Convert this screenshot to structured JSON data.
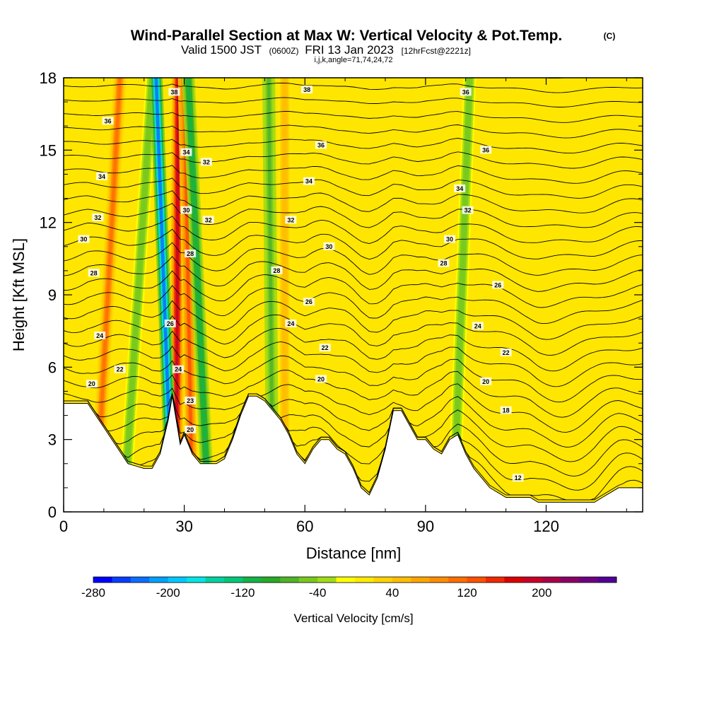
{
  "header": {
    "title": "Wind-Parallel Section at Max W: Vertical Velocity & Pot.Temp.",
    "copyright": "(C)",
    "valid_main": "Valid 1500 JST",
    "valid_utc": "(0600Z)",
    "valid_date": "FRI 13 Jan 2023",
    "forecast": "[12hrFcst@2221z]",
    "indices": "i,j,k,angle=71,74,24,72"
  },
  "chart_data": {
    "type": "heatmap",
    "title": "Wind-Parallel Section at Max W: Vertical Velocity & Pot.Temp.",
    "xlabel": "Distance [nm]",
    "ylabel": "Height [Kft MSL]",
    "xlim": [
      0,
      144
    ],
    "ylim": [
      0,
      18
    ],
    "xticks": [
      0,
      30,
      60,
      90,
      120
    ],
    "xtick_labels": [
      "0",
      "30",
      "60",
      "90",
      "120"
    ],
    "yticks": [
      0,
      3,
      6,
      9,
      12,
      15,
      18
    ],
    "ytick_labels": [
      "0",
      "3",
      "6",
      "9",
      "12",
      "15",
      "18"
    ],
    "colorbar": {
      "label": "Vertical Velocity [cm/s]",
      "min": -280,
      "max": 280,
      "tick_values": [
        -280,
        -200,
        -120,
        -40,
        40,
        120,
        200
      ],
      "tick_labels": [
        "-280",
        "-200",
        "-120",
        "-40",
        "40",
        "120",
        "200"
      ],
      "colors": [
        "#0000ff",
        "#0a3cff",
        "#0a6eff",
        "#00a0ff",
        "#00c8ff",
        "#00e6e6",
        "#00d2a0",
        "#00c878",
        "#14b446",
        "#28aa28",
        "#50b428",
        "#78c81e",
        "#a0dc14",
        "#ffff00",
        "#ffeb00",
        "#ffd200",
        "#ffbe00",
        "#ffa500",
        "#ff8c00",
        "#ff6e00",
        "#ff5000",
        "#f02800",
        "#dc0000",
        "#c80028",
        "#aa0046",
        "#8c0064",
        "#6e0082",
        "#500096"
      ]
    },
    "terrain_kft": {
      "x": [
        0,
        6,
        8,
        10,
        12,
        14,
        16,
        18,
        20,
        22,
        24,
        26,
        27,
        28,
        29,
        30,
        32,
        34,
        36,
        38,
        40,
        42,
        44,
        46,
        48,
        50,
        52,
        54,
        56,
        58,
        60,
        62,
        64,
        66,
        68,
        70,
        72,
        74,
        76,
        78,
        80,
        82,
        84,
        86,
        88,
        90,
        92,
        94,
        96,
        98,
        100,
        102,
        104,
        106,
        108,
        110,
        112,
        114,
        116,
        118,
        120,
        122,
        124,
        126,
        128,
        130,
        132,
        134,
        136,
        138,
        140,
        142,
        144
      ],
      "height": [
        4.5,
        4.5,
        4.0,
        3.5,
        3.0,
        2.5,
        2.0,
        1.9,
        1.8,
        1.8,
        2.4,
        3.8,
        4.8,
        3.8,
        2.8,
        3.2,
        2.4,
        2.0,
        2.0,
        2.0,
        2.2,
        3.0,
        4.0,
        4.8,
        4.8,
        4.6,
        4.2,
        3.8,
        3.2,
        2.4,
        2.0,
        2.6,
        3.0,
        3.0,
        2.6,
        2.4,
        1.8,
        1.0,
        0.7,
        1.4,
        2.6,
        4.2,
        4.2,
        3.6,
        3.0,
        3.0,
        2.6,
        2.4,
        3.0,
        3.2,
        2.4,
        1.8,
        1.4,
        1.0,
        0.8,
        0.6,
        0.6,
        0.6,
        0.6,
        0.4,
        0.4,
        0.4,
        0.4,
        0.4,
        0.4,
        0.4,
        0.4,
        0.6,
        0.8,
        1.0,
        1.0,
        1.0,
        1.0
      ]
    },
    "velocity_bands": [
      {
        "x_bottom": 8,
        "x_top": 14,
        "w": 120
      },
      {
        "x_bottom": 15,
        "x_top": 22,
        "w": -60
      },
      {
        "x_bottom": 28,
        "x_top": 28.5,
        "w": 220
      },
      {
        "x_bottom": 27,
        "x_top": 23,
        "w": -260
      },
      {
        "x_bottom": 32,
        "x_top": 30,
        "w": 140
      },
      {
        "x_bottom": 36,
        "x_top": 31,
        "w": -120
      },
      {
        "x_bottom": 52,
        "x_top": 51,
        "w": -80
      },
      {
        "x_bottom": 55,
        "x_top": 55,
        "w": 60
      },
      {
        "x_bottom": 97,
        "x_top": 101,
        "w": -60
      }
    ],
    "potential_temperature_labels": [
      {
        "x": 7,
        "y": 5.3,
        "label": "20"
      },
      {
        "x": 9,
        "y": 7.3,
        "label": "24"
      },
      {
        "x": 14,
        "y": 5.9,
        "label": "22"
      },
      {
        "x": 7.5,
        "y": 9.9,
        "label": "28"
      },
      {
        "x": 5,
        "y": 11.3,
        "label": "30"
      },
      {
        "x": 8.5,
        "y": 12.2,
        "label": "32"
      },
      {
        "x": 9.5,
        "y": 13.9,
        "label": "34"
      },
      {
        "x": 11,
        "y": 16.2,
        "label": "36"
      },
      {
        "x": 27.5,
        "y": 17.4,
        "label": "38"
      },
      {
        "x": 30.5,
        "y": 14.9,
        "label": "34"
      },
      {
        "x": 35.5,
        "y": 14.5,
        "label": "32"
      },
      {
        "x": 30.5,
        "y": 12.5,
        "label": "30"
      },
      {
        "x": 36,
        "y": 12.1,
        "label": "32"
      },
      {
        "x": 31.5,
        "y": 10.7,
        "label": "28"
      },
      {
        "x": 26.5,
        "y": 7.8,
        "label": "26"
      },
      {
        "x": 28.5,
        "y": 5.9,
        "label": "24"
      },
      {
        "x": 31.5,
        "y": 4.6,
        "label": "23"
      },
      {
        "x": 31.5,
        "y": 3.4,
        "label": "20"
      },
      {
        "x": 60.5,
        "y": 17.5,
        "label": "38"
      },
      {
        "x": 64,
        "y": 15.2,
        "label": "36"
      },
      {
        "x": 61,
        "y": 13.7,
        "label": "34"
      },
      {
        "x": 56.5,
        "y": 12.1,
        "label": "32"
      },
      {
        "x": 66,
        "y": 11.0,
        "label": "30"
      },
      {
        "x": 53,
        "y": 10.0,
        "label": "28"
      },
      {
        "x": 61,
        "y": 8.7,
        "label": "26"
      },
      {
        "x": 56.5,
        "y": 7.8,
        "label": "24"
      },
      {
        "x": 65,
        "y": 6.8,
        "label": "22"
      },
      {
        "x": 64,
        "y": 5.5,
        "label": "20"
      },
      {
        "x": 100,
        "y": 17.4,
        "label": "36"
      },
      {
        "x": 105,
        "y": 15.0,
        "label": "36"
      },
      {
        "x": 98.5,
        "y": 13.4,
        "label": "34"
      },
      {
        "x": 100.5,
        "y": 12.5,
        "label": "32"
      },
      {
        "x": 96,
        "y": 11.3,
        "label": "30"
      },
      {
        "x": 94.5,
        "y": 10.3,
        "label": "28"
      },
      {
        "x": 108,
        "y": 9.4,
        "label": "26"
      },
      {
        "x": 103,
        "y": 7.7,
        "label": "24"
      },
      {
        "x": 110,
        "y": 6.6,
        "label": "22"
      },
      {
        "x": 105,
        "y": 5.4,
        "label": "20"
      },
      {
        "x": 110,
        "y": 4.2,
        "label": "18"
      },
      {
        "x": 113,
        "y": 1.4,
        "label": "12"
      }
    ],
    "grid": false,
    "legend": "colorbar-bottom"
  }
}
